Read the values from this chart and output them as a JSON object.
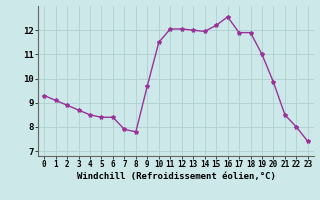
{
  "x": [
    0,
    1,
    2,
    3,
    4,
    5,
    6,
    7,
    8,
    9,
    10,
    11,
    12,
    13,
    14,
    15,
    16,
    17,
    18,
    19,
    20,
    21,
    22,
    23
  ],
  "y": [
    9.3,
    9.1,
    8.9,
    8.7,
    8.5,
    8.4,
    8.4,
    7.9,
    7.8,
    9.7,
    11.5,
    12.05,
    12.05,
    12.0,
    11.95,
    12.2,
    12.55,
    11.9,
    11.9,
    11.0,
    9.85,
    8.5,
    8.0,
    7.4
  ],
  "line_color": "#993399",
  "marker": "*",
  "marker_size": 3.0,
  "bg_color": "#cce8e8",
  "grid_color": "#aacccc",
  "xlabel": "Windchill (Refroidissement éolien,°C)",
  "xlabel_fontsize": 6.5,
  "ylabel_ticks": [
    7,
    8,
    9,
    10,
    11,
    12
  ],
  "xtick_labels": [
    "0",
    "1",
    "2",
    "3",
    "4",
    "5",
    "6",
    "7",
    "8",
    "9",
    "10",
    "11",
    "12",
    "13",
    "14",
    "15",
    "16",
    "17",
    "18",
    "19",
    "20",
    "21",
    "22",
    "23"
  ],
  "ylim": [
    6.8,
    13.0
  ],
  "xlim": [
    -0.5,
    23.5
  ],
  "ytick_fontsize": 6.5,
  "xtick_fontsize": 5.5,
  "line_width": 1.0
}
